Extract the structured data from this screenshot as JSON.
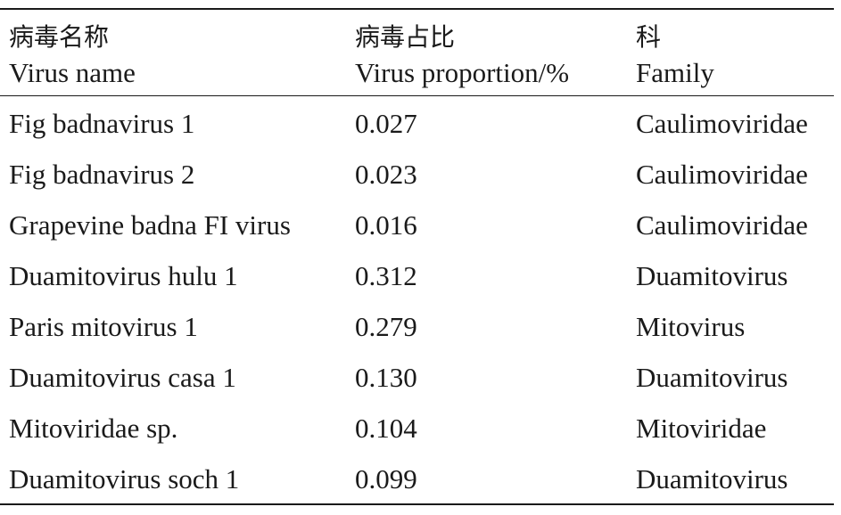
{
  "table": {
    "headers": [
      {
        "zh": "病毒名称",
        "en": "Virus name"
      },
      {
        "zh": "病毒占比",
        "en": "Virus proportion/%"
      },
      {
        "zh": "科",
        "en": "Family"
      }
    ],
    "rows": [
      {
        "name": "Fig badnavirus 1",
        "proportion": "0.027",
        "family": "Caulimoviridae"
      },
      {
        "name": "Fig badnavirus 2",
        "proportion": "0.023",
        "family": "Caulimoviridae"
      },
      {
        "name": "Grapevine badna FI virus",
        "proportion": "0.016",
        "family": "Caulimoviridae"
      },
      {
        "name": "Duamitovirus hulu 1",
        "proportion": "0.312",
        "family": "Duamitovirus"
      },
      {
        "name": "Paris mitovirus 1",
        "proportion": "0.279",
        "family": "Mitovirus"
      },
      {
        "name": "Duamitovirus casa 1",
        "proportion": "0.130",
        "family": "Duamitovirus"
      },
      {
        "name": "Mitoviridae sp.",
        "proportion": "0.104",
        "family": "Mitoviridae"
      },
      {
        "name": "Duamitovirus soch 1",
        "proportion": "0.099",
        "family": "Duamitovirus"
      }
    ]
  }
}
